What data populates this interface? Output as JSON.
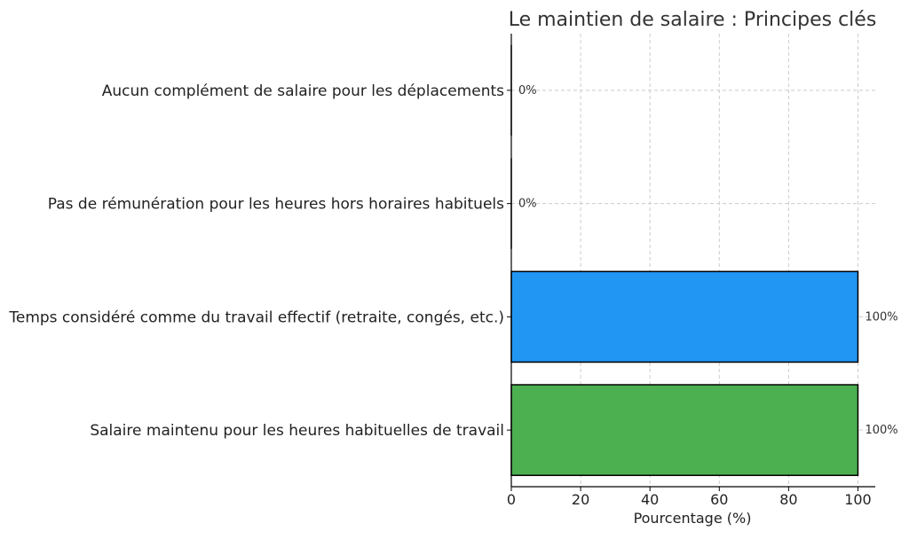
{
  "chart_data": {
    "type": "bar",
    "orientation": "horizontal",
    "title": "Le maintien de salaire : Principes clés",
    "xlabel": "Pourcentage (%)",
    "ylabel": "",
    "xlim": [
      0,
      105
    ],
    "xticks": [
      "0",
      "20",
      "40",
      "60",
      "80",
      "100"
    ],
    "grid": true,
    "categories": [
      "Aucun complément de salaire pour les déplacements",
      "Pas de rémunération pour les heures hors horaires habituels",
      "Temps considéré comme du travail effectif (retraite, congés, etc.)",
      "Salaire maintenu pour les heures habituelles de travail"
    ],
    "values": [
      0,
      0,
      100,
      100
    ],
    "value_labels": [
      "0%",
      "0%",
      "100%",
      "100%"
    ],
    "colors": [
      "#2196F3",
      "#2196F3",
      "#2196F3",
      "#4CAF50"
    ]
  }
}
